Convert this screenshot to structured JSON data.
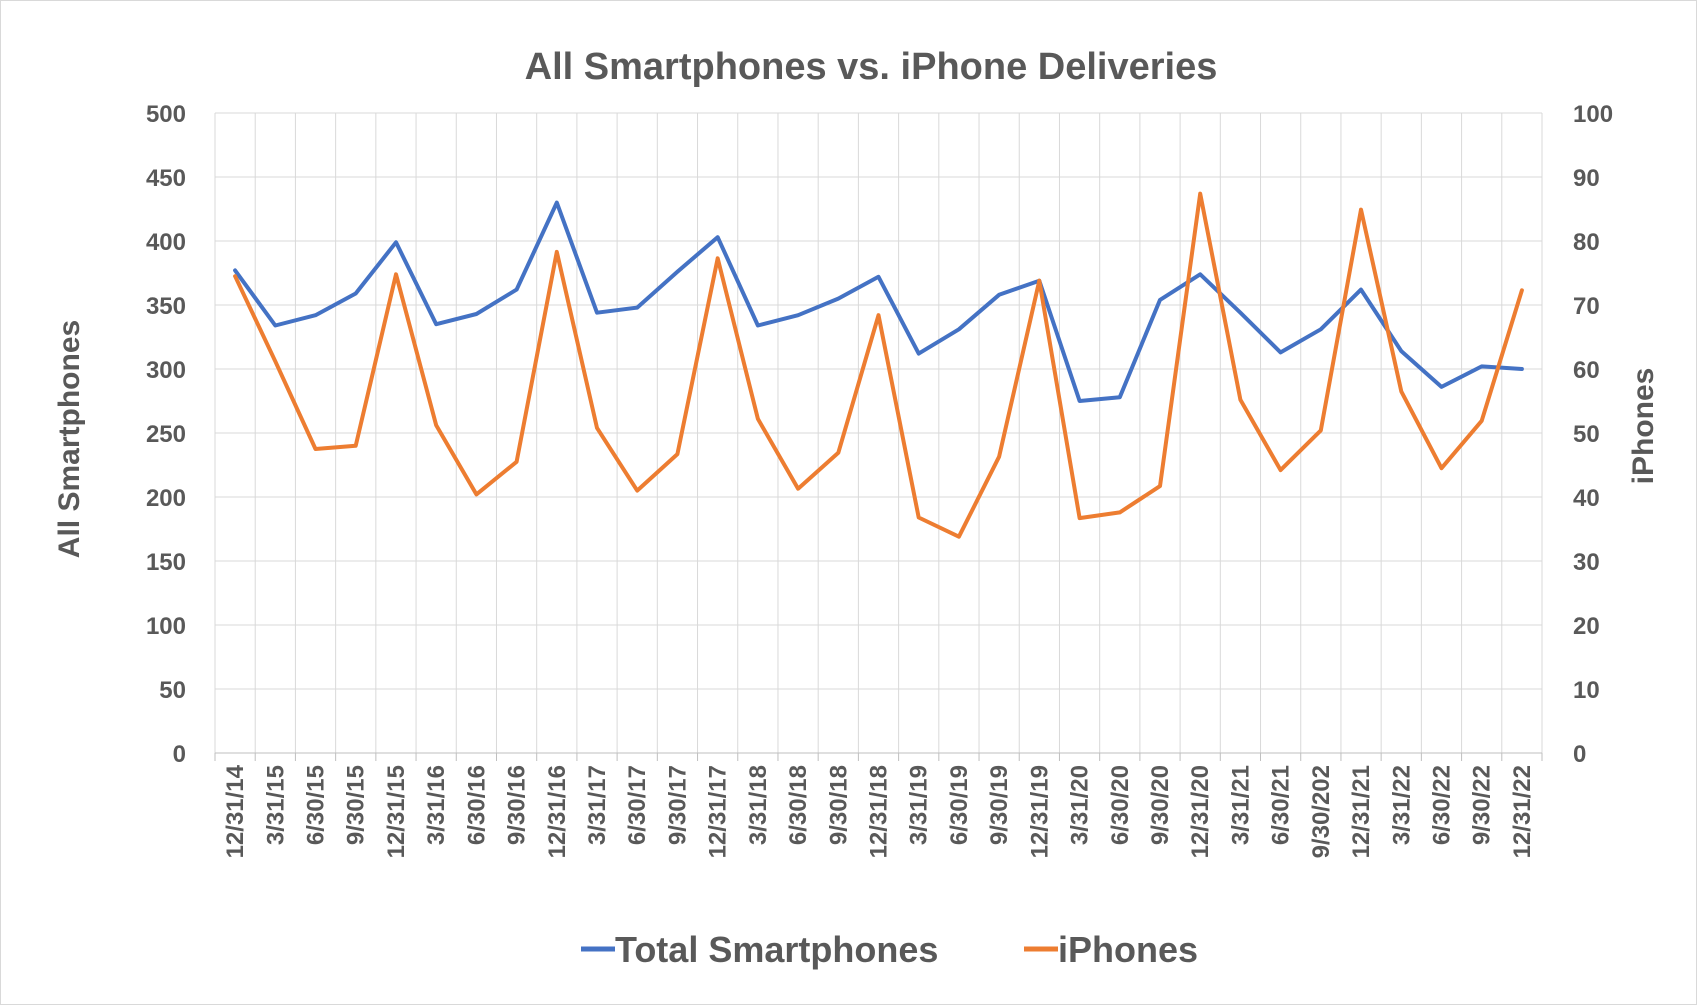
{
  "chart_data": {
    "type": "line",
    "title": "All Smartphones vs. iPhone Deliveries",
    "ylabel": "All Smartphones",
    "y2label": "iPhones",
    "ylim": [
      0,
      500
    ],
    "y2lim": [
      0,
      100
    ],
    "yticks": [
      "0",
      "50",
      "100",
      "150",
      "200",
      "250",
      "300",
      "350",
      "400",
      "450",
      "500"
    ],
    "y2ticks": [
      "0",
      "10",
      "20",
      "30",
      "40",
      "50",
      "60",
      "70",
      "80",
      "90",
      "100"
    ],
    "grid": true,
    "legend_position": "bottom",
    "categories": [
      "12/31/14",
      "3/31/15",
      "6/30/15",
      "9/30/15",
      "12/31/15",
      "3/31/16",
      "6/30/16",
      "9/30/16",
      "12/31/16",
      "3/31/17",
      "6/30/17",
      "9/30/17",
      "12/31/17",
      "3/31/18",
      "6/30/18",
      "9/30/18",
      "12/31/18",
      "3/31/19",
      "6/30/19",
      "9/30/19",
      "12/31/19",
      "3/31/20",
      "6/30/20",
      "9/30/20",
      "12/31/20",
      "3/31/21",
      "6/30/21",
      "9/30/202",
      "12/31/21",
      "3/31/22",
      "6/30/22",
      "9/30/22",
      "12/31/22"
    ],
    "series": [
      {
        "name": "Total Smartphones",
        "axis": "left",
        "color": "#4472c4",
        "values": [
          377,
          334,
          342,
          359,
          399,
          335,
          343,
          362,
          430,
          344,
          348,
          376,
          403,
          334,
          342,
          355,
          372,
          312,
          331,
          358,
          369,
          275,
          278,
          354,
          374,
          344,
          313,
          331,
          362,
          314,
          286,
          302,
          300
        ]
      },
      {
        "name": "iPhones",
        "axis": "right",
        "color": "#ed7d31",
        "values": [
          74.5,
          61.2,
          47.5,
          48,
          74.8,
          51.2,
          40.4,
          45.5,
          78.3,
          50.8,
          41,
          46.7,
          77.3,
          52.2,
          41.3,
          46.9,
          68.4,
          36.8,
          33.8,
          46.3,
          73.8,
          36.7,
          37.6,
          41.7,
          87.4,
          55.2,
          44.2,
          50.4,
          84.9,
          56.5,
          44.5,
          51.9,
          72.3
        ]
      }
    ]
  }
}
